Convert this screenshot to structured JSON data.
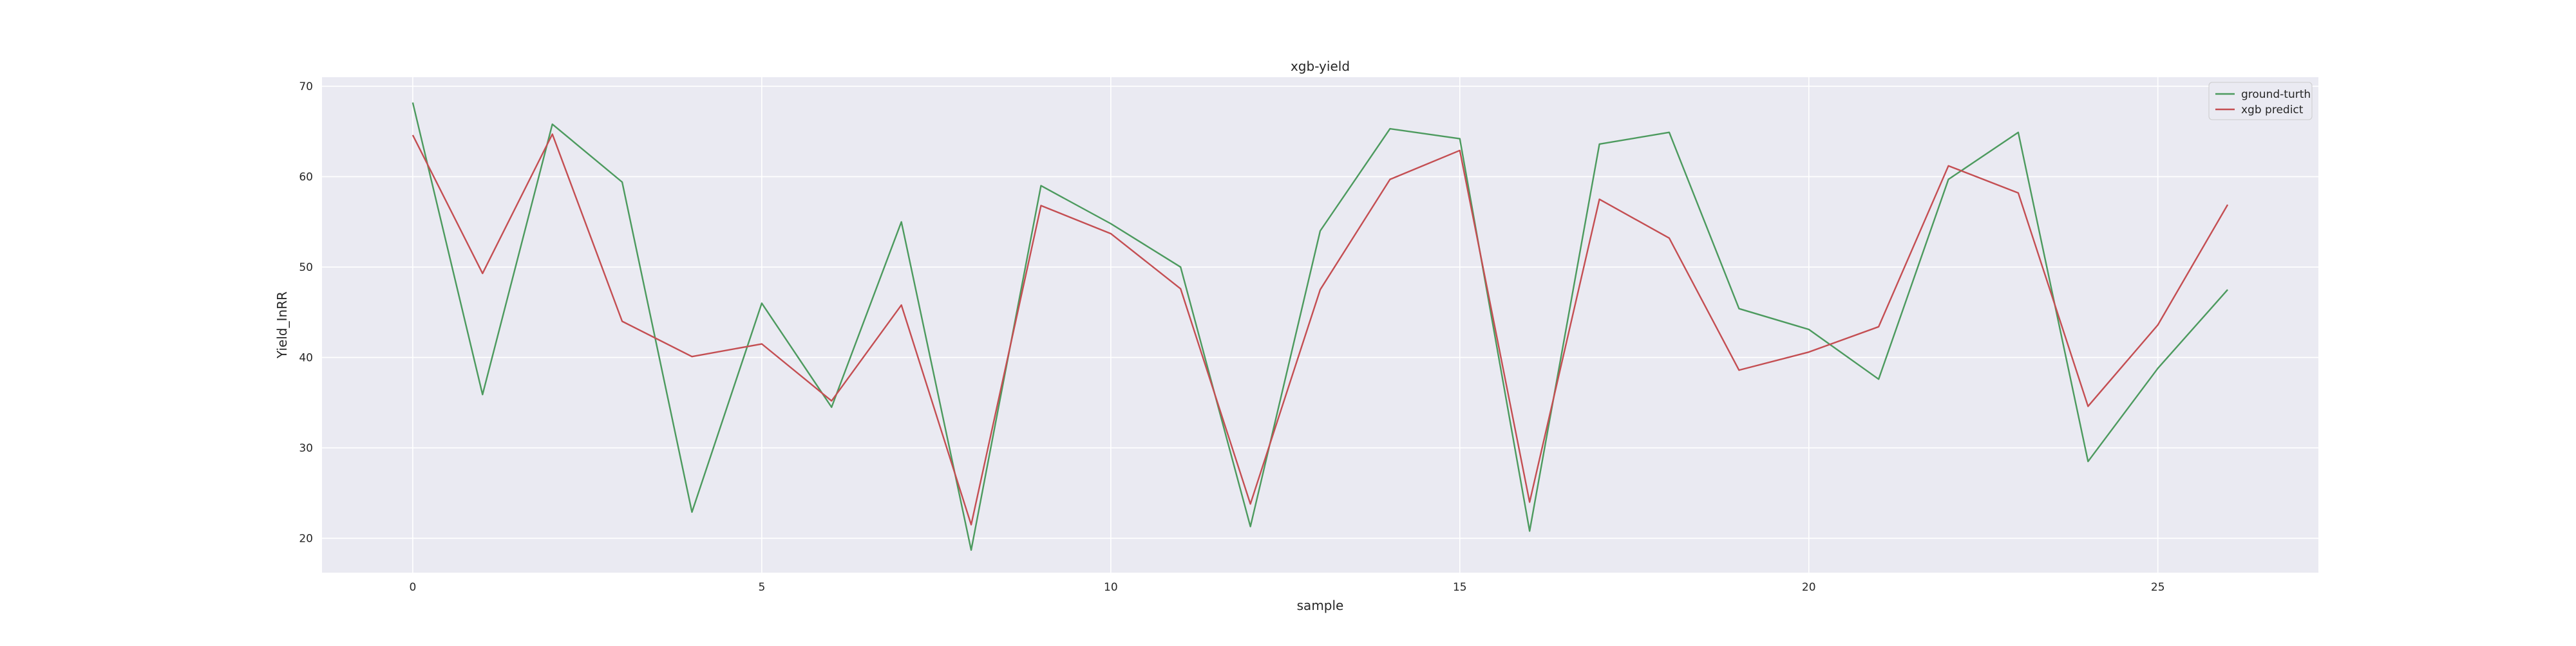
{
  "chart_data": {
    "type": "line",
    "title": "xgb-yield",
    "xlabel": "sample",
    "ylabel": "Yield_InRR",
    "xlim": [
      -1.3,
      27.3
    ],
    "ylim": [
      16.2,
      71.0
    ],
    "xticks": [
      0,
      5,
      10,
      15,
      20,
      25
    ],
    "yticks": [
      20,
      30,
      40,
      50,
      60,
      70
    ],
    "grid": true,
    "legend_position": "top-right",
    "x": [
      0,
      1,
      2,
      3,
      4,
      5,
      6,
      7,
      8,
      9,
      10,
      11,
      12,
      13,
      14,
      15,
      16,
      17,
      18,
      19,
      20,
      21,
      22,
      23,
      24,
      25,
      26
    ],
    "series": [
      {
        "name": "ground-turth",
        "color": "#4c9a5e",
        "values": [
          68.2,
          35.9,
          65.8,
          59.4,
          22.9,
          46.0,
          34.5,
          55.0,
          18.7,
          59.0,
          54.8,
          50.0,
          21.3,
          54.0,
          65.3,
          64.2,
          20.8,
          63.6,
          64.9,
          45.4,
          43.1,
          37.6,
          59.7,
          64.9,
          28.5,
          38.8,
          47.5
        ]
      },
      {
        "name": "xgb predict",
        "color": "#c44e52",
        "values": [
          64.6,
          49.3,
          64.7,
          44.0,
          40.1,
          41.5,
          35.2,
          45.8,
          21.5,
          56.8,
          53.7,
          47.6,
          23.8,
          47.5,
          59.7,
          62.9,
          24.0,
          57.5,
          53.2,
          38.6,
          40.6,
          43.4,
          61.2,
          58.2,
          34.6,
          43.6,
          56.9
        ]
      }
    ]
  }
}
